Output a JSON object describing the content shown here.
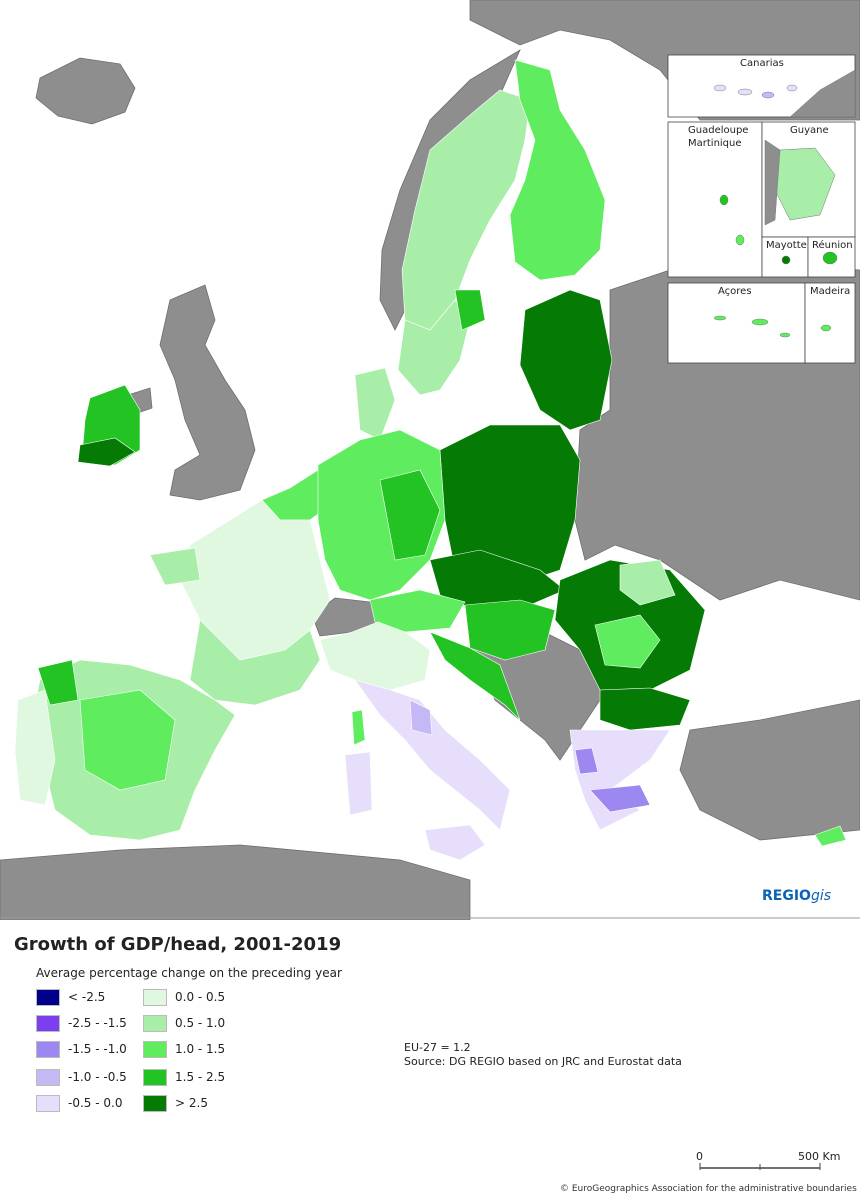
{
  "title": "Growth of GDP/head, 2001-2019",
  "subtitle": "Average percentage change on the preceding year",
  "legend": [
    {
      "label": "< -2.5",
      "color": "#00008b"
    },
    {
      "label": "-2.5 - -1.5",
      "color": "#7b3ff0"
    },
    {
      "label": "-1.5 - -1.0",
      "color": "#9d87f0"
    },
    {
      "label": "-1.0 - -0.5",
      "color": "#c5b8f5"
    },
    {
      "label": "-0.5 - 0.0",
      "color": "#e6defb"
    },
    {
      "label": "0.0 - 0.5",
      "color": "#dff8df"
    },
    {
      "label": "0.5 - 1.0",
      "color": "#a8eea8"
    },
    {
      "label": "1.0 - 1.5",
      "color": "#5fec5f"
    },
    {
      "label": "1.5 - 2.5",
      "color": "#22c322"
    },
    {
      "label": "> 2.5",
      "color": "#057a05"
    }
  ],
  "eu_average": "EU-27 = 1.2",
  "source": "Source: DG REGIO based on JRC and Eurostat data",
  "insets": {
    "canarias": "Canarias",
    "guadeloupe": "Guadeloupe",
    "martinique": "Martinique",
    "guyane": "Guyane",
    "mayotte": "Mayotte",
    "reunion": "Réunion",
    "acores": "Açores",
    "madeira": "Madeira"
  },
  "logo": {
    "main": "REGIO",
    "suffix": "gis"
  },
  "scale": {
    "start": "0",
    "end": "500 Km"
  },
  "copyright": "© EuroGeographics Association for the administrative boundaries",
  "colors": {
    "sea": "#ffffff",
    "non_eu": "#8e8e8e",
    "border": "#555555"
  }
}
